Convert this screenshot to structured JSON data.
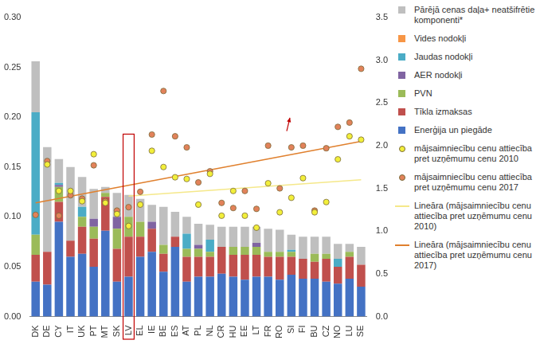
{
  "chart_data": {
    "type": "bar",
    "categories": [
      "DK",
      "DE",
      "CY",
      "IT",
      "UK",
      "PT",
      "MT",
      "SK",
      "LV",
      "EL",
      "IE",
      "BE",
      "ES",
      "AT",
      "PL",
      "NL",
      "CR",
      "HU",
      "EE",
      "LT",
      "FR",
      "RO",
      "SI",
      "FI",
      "BU",
      "CZ",
      "NO",
      "LU",
      "SE"
    ],
    "stacked": true,
    "grid": false,
    "legend": "right",
    "ylim": [
      0,
      0.3
    ],
    "yticks": [
      {
        "value": 0,
        "label": "0.00"
      },
      0.05,
      {
        "value": 0.1,
        "label": "0.10"
      },
      0.15,
      {
        "value": 0.2,
        "label": "0.20"
      },
      0.25,
      {
        "value": 0.3,
        "label": "0.30"
      }
    ],
    "y2lim": [
      0,
      3.5
    ],
    "y2ticks": [
      {
        "value": 0,
        "label": "0.0"
      },
      0.5,
      {
        "value": 1,
        "label": "1.0"
      },
      1.5,
      {
        "value": 2,
        "label": "2.0"
      },
      2.5,
      {
        "value": 3,
        "label": "3.0"
      },
      3.5
    ],
    "series": [
      {
        "name": "Enerģija un piegāde",
        "type": "bar",
        "color": "#4472c4",
        "values": [
          0.035,
          0.032,
          0.095,
          0.06,
          0.063,
          0.05,
          0.086,
          0.035,
          0.04,
          0.06,
          0.065,
          0.045,
          0.07,
          0.035,
          0.04,
          0.04,
          0.043,
          0.04,
          0.037,
          0.04,
          0.04,
          0.037,
          0.042,
          0.038,
          0.038,
          0.035,
          0.033,
          0.038,
          0.03
        ]
      },
      {
        "name": "Tīkla izmaksas",
        "type": "bar",
        "color": "#c0504d",
        "values": [
          0.027,
          0.033,
          0.02,
          0.016,
          0.027,
          0.028,
          0.034,
          0.033,
          0.04,
          0.02,
          0.023,
          0.018,
          0.01,
          0.025,
          0.02,
          0.02,
          0.027,
          0.022,
          0.025,
          0.022,
          0.02,
          0.023,
          0.018,
          0.02,
          0.017,
          0.023,
          0.017,
          0.022,
          0.022
        ]
      },
      {
        "name": "PVN",
        "type": "bar",
        "color": "#9bbb59",
        "values": [
          0.02,
          0,
          0.015,
          0,
          0.01,
          0.012,
          0.004,
          0.02,
          0.02,
          0.015,
          0,
          0.009,
          0,
          0.008,
          0.008,
          0.005,
          0,
          0.008,
          0.008,
          0.008,
          0.005,
          0.005,
          0.005,
          0,
          0.008,
          0.005,
          0,
          0.005,
          0
        ]
      },
      {
        "name": "AER nodokļi",
        "type": "bar",
        "color": "#8064a2",
        "values": [
          0,
          0,
          0.002,
          0,
          0,
          0.008,
          0,
          0.012,
          0,
          0,
          0.007,
          0,
          0,
          0,
          0.004,
          0,
          0,
          0,
          0,
          0.004,
          0,
          0,
          0,
          0,
          0,
          0,
          0,
          0,
          0
        ]
      },
      {
        "name": "Jaudas nodokļi",
        "type": "bar",
        "color": "#4bacc6",
        "values": [
          0.123,
          0,
          0.002,
          0,
          0.01,
          0,
          0,
          0,
          0,
          0,
          0,
          0,
          0,
          0.015,
          0,
          0.012,
          0,
          0,
          0,
          0,
          0,
          0,
          0.002,
          0,
          0,
          0,
          0.008,
          0,
          0
        ]
      },
      {
        "name": "Vides nodokļi",
        "type": "bar",
        "color": "#f79646",
        "values": [
          0,
          0,
          0,
          0,
          0,
          0,
          0,
          0,
          0,
          0,
          0,
          0,
          0,
          0,
          0,
          0,
          0,
          0,
          0,
          0,
          0,
          0,
          0,
          0,
          0,
          0,
          0,
          0,
          0
        ]
      },
      {
        "name": "Pārējā cenas daļa+ neatšifrētie komponenti*",
        "type": "bar",
        "color": "#bfbfbf",
        "values": [
          0.051,
          0.105,
          0.024,
          0.074,
          0.03,
          0.03,
          0.006,
          0.024,
          0.022,
          0.023,
          0.017,
          0.038,
          0.025,
          0.017,
          0.021,
          0.015,
          0.02,
          0.02,
          0.02,
          0.016,
          0.023,
          0.022,
          0.015,
          0.022,
          0.017,
          0.017,
          0.015,
          0.008,
          0.018
        ]
      },
      {
        "name": "mājsaimniecību cenu attiecība pret uzņēmumu cenu 2010",
        "type": "scatter",
        "axis": "y2",
        "marker": "circle",
        "color": "#f2ef3a",
        "values": [
          null,
          1.78,
          1.47,
          1.47,
          1.35,
          1.9,
          1.33,
          1.2,
          1.06,
          1.31,
          1.94,
          1.75,
          1.63,
          1.61,
          1.31,
          1.67,
          1.18,
          1.47,
          1.18,
          1.04,
          1.56,
          1.22,
          1.39,
          1.62,
          1.22,
          1.34,
          1.84,
          2.11,
          2.07
        ]
      },
      {
        "name": "mājsaimniecību cenu attiecība pret uzņēmumu cenu 2017",
        "type": "scatter",
        "axis": "y2",
        "marker": "circle",
        "color": "#e2825a",
        "values": [
          1.19,
          1.82,
          1.18,
          1.42,
          1.38,
          1.77,
          1.35,
          1.24,
          1.28,
          1.46,
          2.13,
          2.64,
          2.11,
          1.98,
          1.57,
          1.7,
          1.33,
          1.27,
          1.47,
          1.26,
          2.0,
          1.5,
          1.98,
          2.0,
          1.24,
          1.97,
          2.22,
          2.27,
          2.9
        ]
      },
      {
        "name": "Lineāra (mājsaimniecību cenu attiecība pret uzņēmumu cenu 2010)",
        "type": "line",
        "axis": "y2",
        "line_style": "solid",
        "color": "#f5e88a",
        "values": [
          null,
          null,
          null,
          null,
          null,
          null,
          null,
          null,
          1.41,
          null,
          null,
          null,
          null,
          null,
          null,
          null,
          null,
          null,
          null,
          null,
          null,
          null,
          null,
          null,
          null,
          null,
          null,
          null,
          1.6
        ]
      },
      {
        "name": "Lineāra (mājsaimniecību cenu attiecība pret uzņēmumu cenu 2017)",
        "type": "line",
        "axis": "y2",
        "line_style": "solid",
        "color": "#e0802e",
        "values": [
          1.33,
          null,
          null,
          null,
          null,
          null,
          null,
          null,
          null,
          null,
          null,
          null,
          null,
          null,
          null,
          null,
          null,
          null,
          null,
          null,
          null,
          null,
          null,
          null,
          null,
          null,
          null,
          null,
          2.05
        ]
      }
    ]
  }
}
